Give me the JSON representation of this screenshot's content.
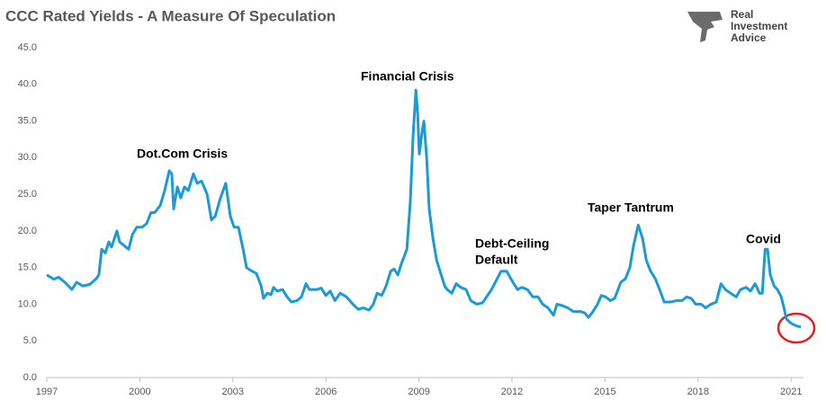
{
  "chart_data": {
    "type": "line",
    "title": "CCC Rated Yields - A Measure Of Speculation",
    "logo": [
      "Real",
      "Investment",
      "Advice"
    ],
    "annotations": [
      "Dot.Com Crisis",
      "Financial Crisis",
      "Debt-Ceiling",
      "Default",
      "Taper Tantrum",
      "Covid"
    ],
    "x": [
      1997.0,
      1997.23,
      1997.38,
      1997.58,
      1997.81,
      1997.96,
      1998.16,
      1998.39,
      1998.6,
      1998.68,
      1998.77,
      1998.89,
      1999.0,
      1999.09,
      1999.26,
      1999.35,
      1999.55,
      1999.64,
      1999.76,
      1999.9,
      2000.07,
      2000.22,
      2000.36,
      2000.48,
      2000.66,
      2000.8,
      2000.95,
      2001.03,
      2001.09,
      2001.21,
      2001.32,
      2001.44,
      2001.56,
      2001.73,
      2001.85,
      2001.99,
      2002.17,
      2002.31,
      2002.43,
      2002.6,
      2002.77,
      2002.92,
      2003.04,
      2003.18,
      2003.33,
      2003.44,
      2003.62,
      2003.76,
      2003.91,
      2003.99,
      2004.11,
      2004.23,
      2004.31,
      2004.43,
      2004.6,
      2004.75,
      2004.89,
      2005.07,
      2005.21,
      2005.36,
      2005.47,
      2005.71,
      2005.85,
      2006.0,
      2006.14,
      2006.29,
      2006.46,
      2006.66,
      2006.87,
      2007.04,
      2007.21,
      2007.39,
      2007.53,
      2007.65,
      2007.8,
      2007.94,
      2008.09,
      2008.2,
      2008.32,
      2008.43,
      2008.61,
      2008.72,
      2008.81,
      2008.9,
      2008.96,
      2009.01,
      2009.1,
      2009.16,
      2009.25,
      2009.33,
      2009.45,
      2009.57,
      2009.68,
      2009.83,
      2009.91,
      2010.06,
      2010.2,
      2010.35,
      2010.52,
      2010.67,
      2010.87,
      2011.05,
      2011.34,
      2011.65,
      2011.83,
      2012.03,
      2012.18,
      2012.32,
      2012.5,
      2012.67,
      2012.84,
      2012.99,
      2013.16,
      2013.34,
      2013.45,
      2013.63,
      2013.8,
      2013.98,
      2014.21,
      2014.35,
      2014.47,
      2014.61,
      2014.76,
      2014.88,
      2015.02,
      2015.17,
      2015.31,
      2015.51,
      2015.66,
      2015.8,
      2015.92,
      2016.07,
      2016.21,
      2016.33,
      2016.47,
      2016.62,
      2016.76,
      2016.91,
      2017.11,
      2017.31,
      2017.49,
      2017.63,
      2017.78,
      2017.92,
      2018.1,
      2018.24,
      2018.42,
      2018.59,
      2018.74,
      2018.88,
      2019.05,
      2019.23,
      2019.37,
      2019.55,
      2019.69,
      2019.84,
      2019.98,
      2020.07,
      2020.16,
      2020.24,
      2020.33,
      2020.45,
      2020.56,
      2020.68,
      2020.77,
      2020.85,
      2020.97,
      2021.09,
      2021.2,
      2021.32
    ],
    "series": [
      {
        "name": "CCC Rated Yields",
        "color": "#1b9ad6",
        "values": [
          14.0,
          13.4,
          13.7,
          13.0,
          12.0,
          13.0,
          12.5,
          12.7,
          13.5,
          14.0,
          17.5,
          17.0,
          18.5,
          17.8,
          20.0,
          18.5,
          17.8,
          17.5,
          19.5,
          20.5,
          20.5,
          21.0,
          22.5,
          22.5,
          23.5,
          25.5,
          28.2,
          27.8,
          23.0,
          26.0,
          24.5,
          26.0,
          25.5,
          27.8,
          26.5,
          26.8,
          25.0,
          21.5,
          22.0,
          24.5,
          26.5,
          22.0,
          20.5,
          20.5,
          17.5,
          15.0,
          14.5,
          14.2,
          12.5,
          10.8,
          11.5,
          11.3,
          12.3,
          11.8,
          12.0,
          11.0,
          10.3,
          10.5,
          11.0,
          12.8,
          12.0,
          12.0,
          12.2,
          11.2,
          11.8,
          10.5,
          11.5,
          11.0,
          10.0,
          9.3,
          9.5,
          9.2,
          10.0,
          11.5,
          11.2,
          12.5,
          14.5,
          14.8,
          14.0,
          15.5,
          17.5,
          24,
          33,
          39.2,
          36,
          30.5,
          33.5,
          35.0,
          30,
          23,
          19,
          16,
          14.5,
          12.5,
          12,
          11.5,
          12.8,
          12.3,
          12.0,
          10.5,
          10.0,
          10.2,
          12.0,
          14.5,
          14.5,
          13.0,
          12.0,
          12.3,
          12.0,
          11.0,
          11.0,
          10.0,
          9.5,
          8.5,
          10.0,
          9.8,
          9.5,
          9.0,
          9.0,
          8.8,
          8.2,
          9.0,
          10.0,
          11.2,
          11.0,
          10.5,
          10.8,
          13.0,
          13.5,
          15,
          18,
          20.8,
          19,
          16,
          14.5,
          13.5,
          12.0,
          10.3,
          10.3,
          10.5,
          10.5,
          11.0,
          10.8,
          10.0,
          10.0,
          9.5,
          10.0,
          10.3,
          12.8,
          12.0,
          11.5,
          11.0,
          12.0,
          12.3,
          11.8,
          12.8,
          11.5,
          11.5,
          17.5,
          17.5,
          14.0,
          12.5,
          12.0,
          11.0,
          9.5,
          8.0,
          7.5,
          7.2,
          7.0,
          6.9
        ]
      }
    ],
    "xlim": [
      1997,
      2021.4
    ],
    "xticks": [
      1997,
      2000,
      2003,
      2006,
      2009,
      2012,
      2015,
      2018,
      2021
    ],
    "ylim": [
      0,
      45
    ],
    "yticks": [
      {
        "value": 0,
        "label": "0.0"
      },
      {
        "value": 5,
        "label": "5.0"
      },
      {
        "value": 10,
        "label": "10.0"
      },
      {
        "value": 15,
        "label": "15.0"
      },
      {
        "value": 20,
        "label": "20.0"
      },
      {
        "value": 25,
        "label": "25.0"
      },
      {
        "value": 30,
        "label": "30.0"
      },
      {
        "value": 35,
        "label": "35.0"
      },
      {
        "value": 40,
        "label": "40.0"
      },
      {
        "value": 45,
        "label": "45.0"
      }
    ],
    "grid": false
  }
}
